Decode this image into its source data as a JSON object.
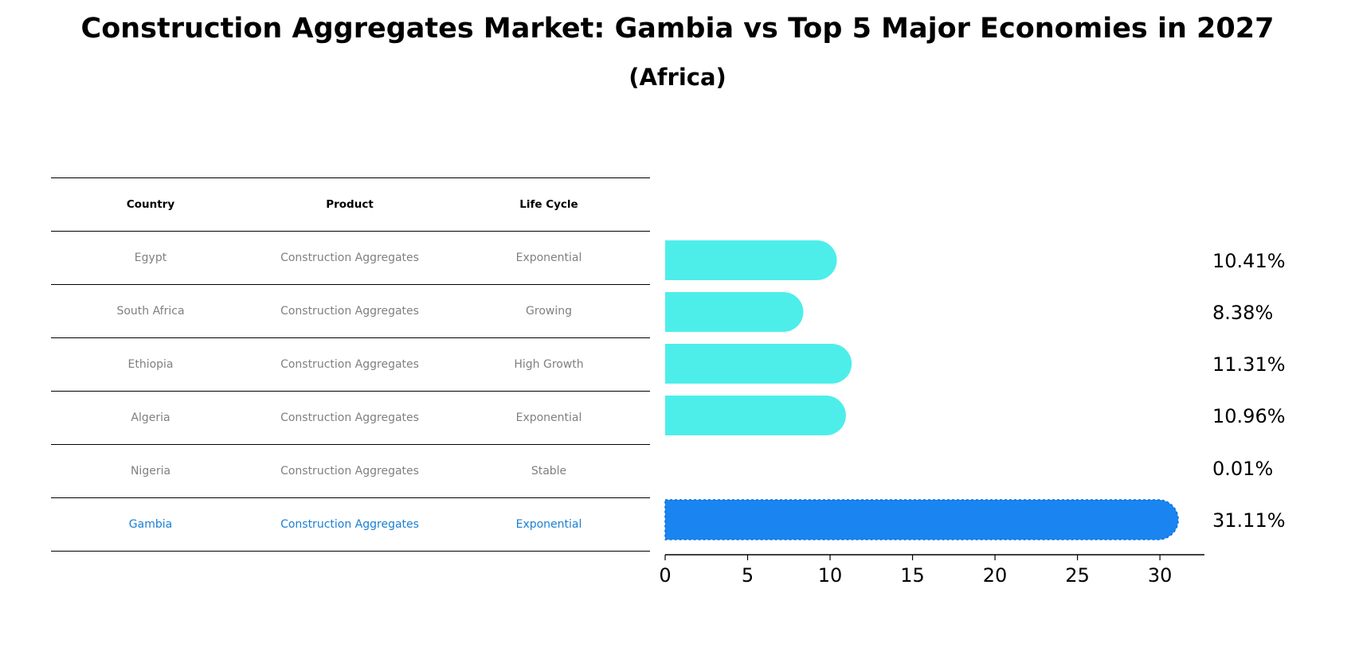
{
  "title": "Construction Aggregates Market: Gambia vs Top 5 Major Economies in 2027",
  "subtitle": "(Africa)",
  "table": {
    "headers": [
      "Country",
      "Product",
      "Life Cycle"
    ],
    "rows": [
      [
        "Egypt",
        "Construction Aggregates",
        "Exponential"
      ],
      [
        "South Africa",
        "Construction Aggregates",
        "Growing"
      ],
      [
        "Ethiopia",
        "Construction Aggregates",
        "High Growth"
      ],
      [
        "Algeria",
        "Construction Aggregates",
        "Exponential"
      ],
      [
        "Nigeria",
        "Construction Aggregates",
        "Stable"
      ],
      [
        "Gambia",
        "Construction Aggregates",
        "Exponential"
      ]
    ],
    "highlight_row": 5
  },
  "chart_data": {
    "type": "bar",
    "orientation": "horizontal",
    "categories": [
      "Egypt",
      "South Africa",
      "Ethiopia",
      "Algeria",
      "Nigeria",
      "Gambia"
    ],
    "values": [
      10.41,
      8.38,
      11.31,
      10.96,
      0.01,
      31.11
    ],
    "value_labels": [
      "10.41%",
      "8.38%",
      "11.31%",
      "10.96%",
      "0.01%",
      "31.11%"
    ],
    "xlim": [
      0,
      32.7
    ],
    "xticks": [
      0,
      5,
      10,
      15,
      20,
      25,
      30
    ],
    "highlight_index": 5,
    "colors": {
      "default": "#4deeea",
      "highlight": "#1a85f0"
    }
  }
}
